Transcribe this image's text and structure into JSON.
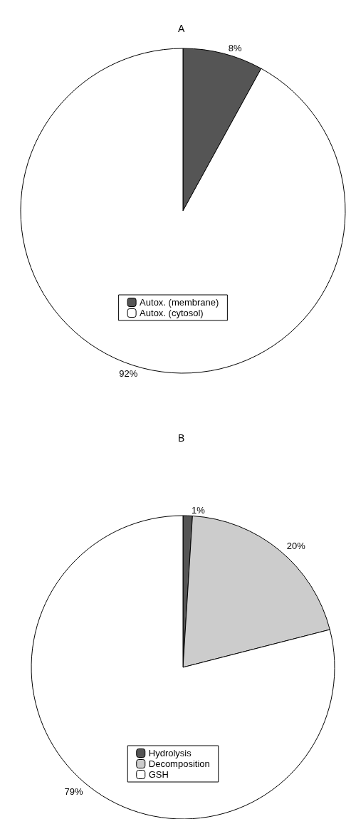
{
  "chart_data": [
    {
      "type": "pie",
      "title": "A",
      "categories": [
        "Autox. (membrane)",
        "Autox. (cytosol)"
      ],
      "values": [
        8,
        92
      ],
      "colors": [
        "#555555",
        "#ffffff"
      ],
      "value_labels": [
        "8%",
        "92%"
      ],
      "legend": "bottom"
    },
    {
      "type": "pie",
      "title": "B",
      "categories": [
        "Hydrolysis",
        "Decomposition",
        "GSH"
      ],
      "values": [
        1,
        20,
        79
      ],
      "colors": [
        "#555555",
        "#cccccc",
        "#ffffff"
      ],
      "value_labels": [
        "1%",
        "20%",
        "79%"
      ],
      "legend": "bottom"
    }
  ]
}
